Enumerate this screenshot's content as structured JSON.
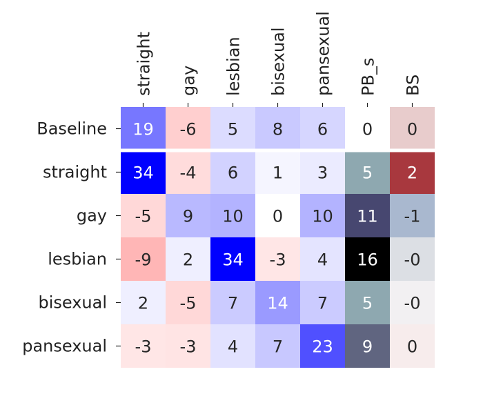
{
  "chart_data": {
    "type": "heatmap",
    "columns": [
      "straight",
      "gay",
      "lesbian",
      "bisexual",
      "pansexual",
      "PB_s",
      "BS"
    ],
    "rows": [
      "Baseline",
      "straight",
      "gay",
      "lesbian",
      "bisexual",
      "pansexual"
    ],
    "cell_labels": [
      [
        "19",
        "-6",
        "5",
        "8",
        "6",
        "0",
        "0"
      ],
      [
        "34",
        "-4",
        "6",
        "1",
        "3",
        "5",
        "2"
      ],
      [
        "-5",
        "9",
        "10",
        "0",
        "10",
        "11",
        "-1"
      ],
      [
        "-9",
        "2",
        "34",
        "-3",
        "4",
        "16",
        "-0"
      ],
      [
        "2",
        "-5",
        "7",
        "14",
        "7",
        "5",
        "-0"
      ],
      [
        "-3",
        "-3",
        "4",
        "7",
        "23",
        "9",
        "0"
      ]
    ],
    "cell_colors": [
      [
        "#7777ff",
        "#ffcfcf",
        "#dcdcff",
        "#c9c9ff",
        "#d6d6ff",
        "#ffffff",
        "#e8cccc"
      ],
      [
        "#0000ff",
        "#ffdcdc",
        "#d2d2ff",
        "#f5f5ff",
        "#ebebff",
        "#8ea8b0",
        "#a8383e"
      ],
      [
        "#ffd8d8",
        "#b9b9ff",
        "#b3b3ff",
        "#ffffff",
        "#b3b3ff",
        "#474770",
        "#a9b8cf"
      ],
      [
        "#ffb6b6",
        "#efefff",
        "#0000ff",
        "#ffe6e6",
        "#e4e4ff",
        "#000000",
        "#dcdfe4"
      ],
      [
        "#efefff",
        "#ffd8d8",
        "#cbcbff",
        "#9a9aff",
        "#cbcbff",
        "#8ea8b0",
        "#f2f0f2"
      ],
      [
        "#ffe6e6",
        "#ffe4e4",
        "#e2e2ff",
        "#c8c8ff",
        "#5050ff",
        "#606580",
        "#f7ecec"
      ]
    ],
    "cell_text_colors": [
      [
        "#ffffff",
        "#262626",
        "#262626",
        "#262626",
        "#262626",
        "#262626",
        "#262626"
      ],
      [
        "#ffffff",
        "#262626",
        "#262626",
        "#262626",
        "#262626",
        "#ffffff",
        "#ffffff"
      ],
      [
        "#262626",
        "#262626",
        "#262626",
        "#262626",
        "#262626",
        "#ffffff",
        "#262626"
      ],
      [
        "#262626",
        "#262626",
        "#ffffff",
        "#262626",
        "#262626",
        "#ffffff",
        "#262626"
      ],
      [
        "#262626",
        "#262626",
        "#262626",
        "#ffffff",
        "#262626",
        "#ffffff",
        "#262626"
      ],
      [
        "#262626",
        "#262626",
        "#262626",
        "#262626",
        "#ffffff",
        "#ffffff",
        "#262626"
      ]
    ],
    "separator_after_row": 0,
    "separator_color": "#ffffff",
    "colorbar": false
  }
}
